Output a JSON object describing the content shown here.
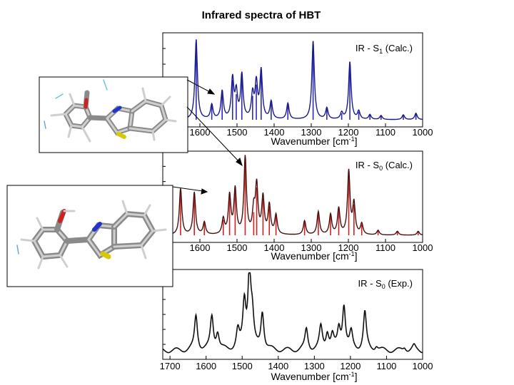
{
  "title": "Infrared spectra of HBT",
  "chart_data": [
    {
      "type": "line",
      "label": "IR - S",
      "label_sub": "1",
      "label_suffix": " (Calc.)",
      "xlabel_main": "Wavenumber [cm",
      "xlabel_sup": "-1",
      "xlabel_end": "]",
      "xlim": [
        1700,
        1000
      ],
      "x_ticks": [
        "1600",
        "1500",
        "1400",
        "1300",
        "1200",
        "1100",
        "1000"
      ],
      "color": "#1a1a8c",
      "stick_color": "#2b2bb5",
      "peaks": [
        {
          "x": 1610,
          "y": 1.0
        },
        {
          "x": 1568,
          "y": 0.18
        },
        {
          "x": 1540,
          "y": 0.35
        },
        {
          "x": 1512,
          "y": 0.5
        },
        {
          "x": 1502,
          "y": 0.32
        },
        {
          "x": 1487,
          "y": 0.55
        },
        {
          "x": 1458,
          "y": 0.3
        },
        {
          "x": 1448,
          "y": 0.44
        },
        {
          "x": 1435,
          "y": 0.6
        },
        {
          "x": 1408,
          "y": 0.22
        },
        {
          "x": 1363,
          "y": 0.2
        },
        {
          "x": 1295,
          "y": 0.98
        },
        {
          "x": 1258,
          "y": 0.14
        },
        {
          "x": 1218,
          "y": 0.08
        },
        {
          "x": 1196,
          "y": 0.72
        },
        {
          "x": 1172,
          "y": 0.1
        },
        {
          "x": 1142,
          "y": 0.06
        },
        {
          "x": 1112,
          "y": 0.05
        },
        {
          "x": 1052,
          "y": 0.06
        },
        {
          "x": 1018,
          "y": 0.08
        }
      ]
    },
    {
      "type": "line",
      "label": "IR - S",
      "label_sub": "0",
      "label_suffix": " (Calc.)",
      "xlabel_main": "Wavenumber [cm",
      "xlabel_sup": "-1",
      "xlabel_end": "]",
      "xlim": [
        1700,
        1000
      ],
      "x_ticks": [
        "1600",
        "1500",
        "1400",
        "1300",
        "1200",
        "1100",
        "1000"
      ],
      "color": "#4a1010",
      "stick_color": "#cc2222",
      "peaks": [
        {
          "x": 1652,
          "y": 0.6
        },
        {
          "x": 1615,
          "y": 0.55
        },
        {
          "x": 1588,
          "y": 0.16
        },
        {
          "x": 1537,
          "y": 0.2
        },
        {
          "x": 1520,
          "y": 0.5
        },
        {
          "x": 1505,
          "y": 0.58
        },
        {
          "x": 1478,
          "y": 1.0
        },
        {
          "x": 1455,
          "y": 0.3
        },
        {
          "x": 1447,
          "y": 0.62
        },
        {
          "x": 1430,
          "y": 0.48
        },
        {
          "x": 1413,
          "y": 0.38
        },
        {
          "x": 1395,
          "y": 0.25
        },
        {
          "x": 1318,
          "y": 0.18
        },
        {
          "x": 1281,
          "y": 0.3
        },
        {
          "x": 1248,
          "y": 0.26
        },
        {
          "x": 1226,
          "y": 0.34
        },
        {
          "x": 1199,
          "y": 0.82
        },
        {
          "x": 1185,
          "y": 0.4
        },
        {
          "x": 1164,
          "y": 0.14
        },
        {
          "x": 1120,
          "y": 0.06
        },
        {
          "x": 1068,
          "y": 0.05
        },
        {
          "x": 1012,
          "y": 0.05
        }
      ]
    },
    {
      "type": "line",
      "label": "IR - S",
      "label_sub": "0",
      "label_suffix": " (Exp.)",
      "xlabel_main": "Wavenumber [cm",
      "xlabel_sup": "-1",
      "xlabel_end": "]",
      "xlim": [
        1720,
        1000
      ],
      "x_ticks": [
        "1700",
        "1600",
        "1500",
        "1400",
        "1300",
        "1200",
        "1100",
        "1000"
      ],
      "color": "#111111",
      "peaks": [
        {
          "x": 1628,
          "y": 0.46
        },
        {
          "x": 1584,
          "y": 0.44
        },
        {
          "x": 1568,
          "y": 0.22
        },
        {
          "x": 1512,
          "y": 0.24
        },
        {
          "x": 1494,
          "y": 0.6
        },
        {
          "x": 1480,
          "y": 1.0
        },
        {
          "x": 1472,
          "y": 0.38
        },
        {
          "x": 1444,
          "y": 0.5
        },
        {
          "x": 1322,
          "y": 0.28
        },
        {
          "x": 1282,
          "y": 0.3
        },
        {
          "x": 1264,
          "y": 0.22
        },
        {
          "x": 1250,
          "y": 0.18
        },
        {
          "x": 1232,
          "y": 0.26
        },
        {
          "x": 1218,
          "y": 0.58
        },
        {
          "x": 1198,
          "y": 0.22
        },
        {
          "x": 1160,
          "y": 0.5
        },
        {
          "x": 1128,
          "y": 0.06
        },
        {
          "x": 1050,
          "y": 0.05
        },
        {
          "x": 1024,
          "y": 0.06
        }
      ]
    }
  ],
  "molecules": [
    {
      "name": "HBT excited state (keto) structure"
    },
    {
      "name": "HBT ground state (enol) structure"
    }
  ]
}
